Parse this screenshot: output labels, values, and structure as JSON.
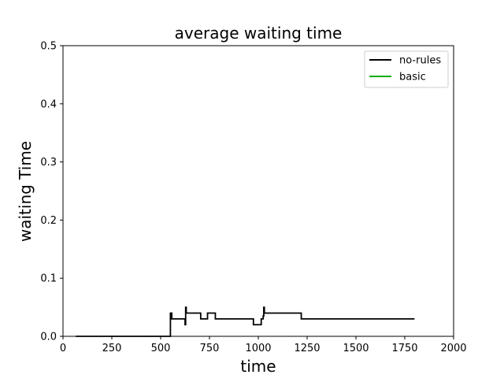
{
  "chart_data": {
    "type": "line",
    "title": "average waiting time",
    "xlabel": "time",
    "ylabel": "waiting Time",
    "xlim": [
      0,
      2000
    ],
    "ylim": [
      0,
      0.5
    ],
    "xticks": [
      0,
      250,
      500,
      750,
      1000,
      1250,
      1500,
      1750,
      2000
    ],
    "yticks": [
      0.0,
      0.1,
      0.2,
      0.3,
      0.4,
      0.5
    ],
    "xtick_labels": [
      "0",
      "250",
      "500",
      "750",
      "1000",
      "1250",
      "1500",
      "1750",
      "2000"
    ],
    "ytick_labels": [
      "0.0",
      "0.1",
      "0.2",
      "0.3",
      "0.4",
      "0.5"
    ],
    "grid": false,
    "legend_position": "top-right",
    "series": [
      {
        "name": "no-rules",
        "color": "#000000",
        "x": [
          65,
          550,
          550,
          557,
          557,
          625,
          625,
          628,
          628,
          631,
          631,
          705,
          705,
          740,
          740,
          780,
          780,
          975,
          975,
          1015,
          1015,
          1025,
          1025,
          1028,
          1028,
          1031,
          1031,
          1220,
          1220,
          1800
        ],
        "y": [
          0.0,
          0.0,
          0.04,
          0.04,
          0.03,
          0.03,
          0.02,
          0.02,
          0.05,
          0.05,
          0.04,
          0.04,
          0.03,
          0.03,
          0.04,
          0.04,
          0.03,
          0.03,
          0.02,
          0.02,
          0.03,
          0.03,
          0.035,
          0.035,
          0.05,
          0.05,
          0.04,
          0.04,
          0.03,
          0.03
        ]
      },
      {
        "name": "basic",
        "color": "#00b000",
        "x": [],
        "y": []
      }
    ]
  }
}
